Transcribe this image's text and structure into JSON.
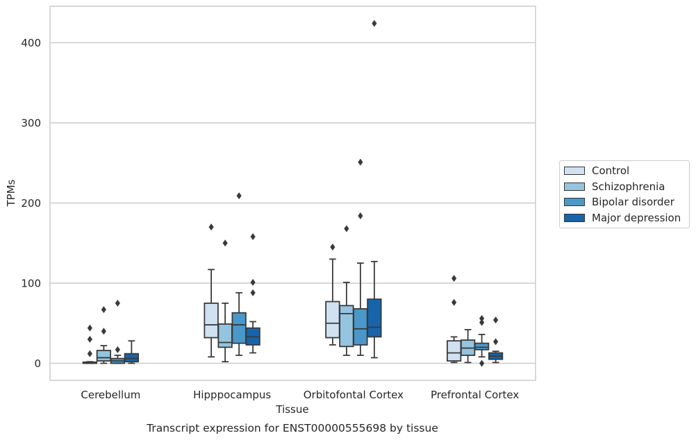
{
  "chart_data": {
    "type": "box",
    "title": "Transcript expression for ENST00000555698 by tissue",
    "xlabel": "Tissue",
    "ylabel": "TPMs",
    "ylim": [
      -20,
      445
    ],
    "yticks": [
      0,
      100,
      200,
      300,
      400
    ],
    "grid": "horizontal",
    "legend_position": "right",
    "categories": [
      "Cerebellum",
      "Hipppocampus",
      "Orbitofontal Cortex",
      "Prefrontal Cortex"
    ],
    "series": [
      {
        "name": "Control",
        "color": "#d0e1f2",
        "boxes": [
          {
            "min": 0,
            "q1": 0,
            "median": 0.5,
            "q3": 1.5,
            "max": 2,
            "outliers": [
              12,
              30,
              44
            ]
          },
          {
            "min": 8,
            "q1": 32,
            "median": 48,
            "q3": 75,
            "max": 117,
            "outliers": [
              170
            ]
          },
          {
            "min": 23,
            "q1": 32,
            "median": 50,
            "q3": 77,
            "max": 130,
            "outliers": [
              145
            ]
          },
          {
            "min": 1,
            "q1": 3,
            "median": 13,
            "q3": 28,
            "max": 33,
            "outliers": [
              76,
              106
            ]
          }
        ]
      },
      {
        "name": "Schizophrenia",
        "color": "#94c4df",
        "boxes": [
          {
            "min": 0,
            "q1": 3,
            "median": 7,
            "q3": 16,
            "max": 22,
            "outliers": [
              40,
              67
            ]
          },
          {
            "min": 2,
            "q1": 20,
            "median": 26,
            "q3": 49,
            "max": 75,
            "outliers": [
              150
            ]
          },
          {
            "min": 10,
            "q1": 21,
            "median": 62,
            "q3": 72,
            "max": 101,
            "outliers": [
              168
            ]
          },
          {
            "min": 1,
            "q1": 10,
            "median": 19,
            "q3": 29,
            "max": 42,
            "outliers": []
          }
        ]
      },
      {
        "name": "Bipolar disorder",
        "color": "#4a98c9",
        "boxes": [
          {
            "min": 0,
            "q1": 0,
            "median": 3,
            "q3": 6,
            "max": 10,
            "outliers": [
              17,
              75
            ]
          },
          {
            "min": 10,
            "q1": 25,
            "median": 48,
            "q3": 63,
            "max": 88,
            "outliers": [
              209
            ]
          },
          {
            "min": 10,
            "q1": 23,
            "median": 43,
            "q3": 68,
            "max": 125,
            "outliers": [
              184,
              251
            ]
          },
          {
            "min": 8,
            "q1": 17,
            "median": 20,
            "q3": 25,
            "max": 36,
            "outliers": [
              0,
              51,
              56
            ]
          }
        ]
      },
      {
        "name": "Major depression",
        "color": "#1764ab",
        "boxes": [
          {
            "min": 0,
            "q1": 2,
            "median": 6,
            "q3": 12,
            "max": 28,
            "outliers": []
          },
          {
            "min": 13,
            "q1": 23,
            "median": 33,
            "q3": 44,
            "max": 52,
            "outliers": [
              88,
              101,
              158
            ]
          },
          {
            "min": 7,
            "q1": 33,
            "median": 45,
            "q3": 80,
            "max": 127,
            "outliers": [
              424
            ]
          },
          {
            "min": 1,
            "q1": 5,
            "median": 9,
            "q3": 13,
            "max": 15,
            "outliers": [
              27,
              54
            ]
          }
        ]
      }
    ]
  }
}
